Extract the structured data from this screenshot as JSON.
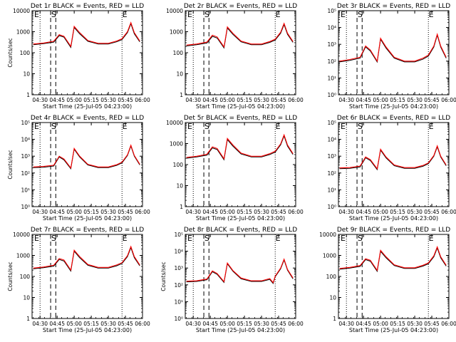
{
  "chart_data": [
    {
      "type": "line",
      "title": "Det 1r BLACK = Events, RED = LLD",
      "xlabel": "",
      "ylabel": "Counts/sec",
      "x_tick_labels": [
        "04:30",
        "04:45",
        "05:00",
        "05:15",
        "05:30",
        "05:45",
        "06:00"
      ],
      "y_tick_labels": [
        "1",
        "10",
        "100",
        "1000",
        "10000"
      ],
      "ylim": [
        1,
        10000
      ],
      "y_scale": "log",
      "markers": [
        "E",
        "S",
        "E"
      ],
      "series": [
        {
          "color": "#000000",
          "x": [
            4.4,
            4.55,
            4.7,
            4.78,
            4.85,
            4.95,
            5.0,
            5.08,
            5.2,
            5.35,
            5.5,
            5.62,
            5.7,
            5.78,
            5.83,
            5.88,
            5.96
          ],
          "y": [
            240,
            270,
            320,
            650,
            550,
            180,
            1600,
            800,
            350,
            260,
            260,
            330,
            420,
            900,
            2400,
            800,
            330
          ]
        },
        {
          "color": "#ff0000",
          "x": [
            4.4,
            4.55,
            4.7,
            4.78,
            4.85,
            4.95,
            5.0,
            5.08,
            5.2,
            5.35,
            5.5,
            5.62,
            5.7,
            5.78,
            5.83,
            5.88,
            5.96
          ],
          "y": [
            260,
            290,
            350,
            720,
            600,
            200,
            1800,
            900,
            380,
            280,
            280,
            360,
            460,
            1000,
            2700,
            900,
            360
          ]
        }
      ]
    },
    {
      "type": "line",
      "title": "Det 2r BLACK = Events, RED = LLD",
      "xlabel": "",
      "ylabel": "",
      "x_tick_labels": [
        "04:30",
        "04:45",
        "05:00",
        "05:15",
        "05:30",
        "05:45",
        "06:00"
      ],
      "y_tick_labels": [
        "1",
        "10",
        "100",
        "1000",
        "10000"
      ],
      "ylim": [
        1,
        10000
      ],
      "y_scale": "log",
      "markers": [
        "E",
        "S",
        "E"
      ],
      "series": [
        {
          "color": "#000000",
          "x": [
            4.4,
            4.55,
            4.7,
            4.78,
            4.85,
            4.95,
            5.0,
            5.08,
            5.2,
            5.35,
            5.5,
            5.62,
            5.7,
            5.78,
            5.83,
            5.88,
            5.96
          ],
          "y": [
            210,
            240,
            290,
            600,
            500,
            170,
            1500,
            750,
            330,
            240,
            240,
            310,
            400,
            850,
            2200,
            750,
            310
          ]
        },
        {
          "color": "#ff0000",
          "x": [
            4.4,
            4.55,
            4.7,
            4.78,
            4.85,
            4.95,
            5.0,
            5.08,
            5.2,
            5.35,
            5.5,
            5.62,
            5.7,
            5.78,
            5.83,
            5.88,
            5.96
          ],
          "y": [
            230,
            260,
            320,
            680,
            560,
            190,
            1700,
            850,
            360,
            260,
            260,
            340,
            440,
            950,
            2500,
            850,
            340
          ]
        }
      ]
    },
    {
      "type": "line",
      "title": "Det 3r BLACK = Events, RED = LLD",
      "xlabel": "",
      "ylabel": "",
      "x_tick_labels": [
        "04:30",
        "04:45",
        "05:00",
        "05:15",
        "05:30",
        "05:45",
        "06:00"
      ],
      "y_tick_labels": [
        "10⁰",
        "10¹",
        "10²",
        "10³",
        "10⁴",
        "10⁵"
      ],
      "ylim": [
        1,
        100000
      ],
      "y_scale": "log",
      "markers": [
        "E",
        "S",
        "E"
      ],
      "series": [
        {
          "color": "#000000",
          "x": [
            4.4,
            4.55,
            4.7,
            4.78,
            4.85,
            4.95,
            5.0,
            5.08,
            5.2,
            5.35,
            5.5,
            5.62,
            5.7,
            5.78,
            5.83,
            5.88,
            5.96
          ],
          "y": [
            90,
            110,
            150,
            700,
            400,
            90,
            2000,
            600,
            150,
            90,
            90,
            130,
            200,
            700,
            3500,
            700,
            150
          ]
        },
        {
          "color": "#ff0000",
          "x": [
            4.4,
            4.55,
            4.7,
            4.78,
            4.85,
            4.95,
            5.0,
            5.08,
            5.2,
            5.35,
            5.5,
            5.62,
            5.7,
            5.78,
            5.83,
            5.88,
            5.96
          ],
          "y": [
            100,
            125,
            170,
            800,
            460,
            100,
            2300,
            700,
            170,
            100,
            100,
            150,
            230,
            800,
            4000,
            800,
            170
          ]
        }
      ]
    },
    {
      "type": "line",
      "title": "Det 4r BLACK = Events, RED = LLD",
      "xlabel": "",
      "ylabel": "Counts/sec",
      "x_tick_labels": [
        "04:30",
        "04:45",
        "05:00",
        "05:15",
        "05:30",
        "05:45",
        "06:00"
      ],
      "y_tick_labels": [
        "10⁰",
        "10¹",
        "10²",
        "10³",
        "10⁴",
        "10⁵"
      ],
      "ylim": [
        1,
        100000
      ],
      "y_scale": "log",
      "markers": [
        "E",
        "S",
        "E"
      ],
      "series": [
        {
          "color": "#000000",
          "x": [
            4.4,
            4.55,
            4.7,
            4.78,
            4.85,
            4.95,
            5.0,
            5.08,
            5.2,
            5.35,
            5.5,
            5.62,
            5.7,
            5.78,
            5.83,
            5.88,
            5.96
          ],
          "y": [
            210,
            220,
            260,
            900,
            600,
            180,
            2600,
            900,
            300,
            210,
            210,
            280,
            400,
            1100,
            4000,
            1000,
            300
          ]
        },
        {
          "color": "#ff0000",
          "x": [
            4.4,
            4.55,
            4.7,
            4.78,
            4.85,
            4.95,
            5.0,
            5.08,
            5.2,
            5.35,
            5.5,
            5.62,
            5.7,
            5.78,
            5.83,
            5.88,
            5.96
          ],
          "y": [
            230,
            245,
            290,
            1000,
            680,
            200,
            2900,
            1000,
            330,
            230,
            230,
            310,
            440,
            1200,
            4500,
            1100,
            330
          ]
        }
      ]
    },
    {
      "type": "line",
      "title": "Det 5r BLACK = Events, RED = LLD",
      "xlabel": "",
      "ylabel": "",
      "x_tick_labels": [
        "04:30",
        "04:45",
        "05:00",
        "05:15",
        "05:30",
        "05:45",
        "06:00"
      ],
      "y_tick_labels": [
        "1",
        "10",
        "100",
        "1000",
        "10000"
      ],
      "ylim": [
        1,
        10000
      ],
      "y_scale": "log",
      "markers": [
        "E",
        "S",
        "E"
      ],
      "series": [
        {
          "color": "#000000",
          "x": [
            4.4,
            4.55,
            4.7,
            4.78,
            4.85,
            4.95,
            5.0,
            5.08,
            5.2,
            5.35,
            5.5,
            5.62,
            5.7,
            5.78,
            5.83,
            5.88,
            5.96
          ],
          "y": [
            200,
            230,
            280,
            620,
            520,
            170,
            1550,
            760,
            320,
            230,
            230,
            300,
            390,
            870,
            2300,
            760,
            300
          ]
        },
        {
          "color": "#ff0000",
          "x": [
            4.4,
            4.55,
            4.7,
            4.78,
            4.85,
            4.95,
            5.0,
            5.08,
            5.2,
            5.35,
            5.5,
            5.62,
            5.7,
            5.78,
            5.83,
            5.88,
            5.96
          ],
          "y": [
            220,
            250,
            310,
            700,
            580,
            190,
            1750,
            860,
            350,
            250,
            250,
            330,
            430,
            970,
            2600,
            860,
            330
          ]
        }
      ]
    },
    {
      "type": "line",
      "title": "Det 6r BLACK = Events, RED = LLD",
      "xlabel": "",
      "ylabel": "",
      "x_tick_labels": [
        "04:30",
        "04:45",
        "05:00",
        "05:15",
        "05:30",
        "05:45",
        "06:00"
      ],
      "y_tick_labels": [
        "10⁰",
        "10¹",
        "10²",
        "10³",
        "10⁴",
        "10⁵"
      ],
      "ylim": [
        1,
        100000
      ],
      "y_scale": "log",
      "markers": [
        "E",
        "S",
        "E"
      ],
      "series": [
        {
          "color": "#000000",
          "x": [
            4.4,
            4.55,
            4.7,
            4.78,
            4.85,
            4.95,
            5.0,
            5.08,
            5.2,
            5.35,
            5.5,
            5.62,
            5.7,
            5.78,
            5.83,
            5.88,
            5.96
          ],
          "y": [
            180,
            190,
            230,
            800,
            550,
            160,
            2300,
            800,
            270,
            190,
            190,
            250,
            360,
            1000,
            3600,
            900,
            270
          ]
        },
        {
          "color": "#ff0000",
          "x": [
            4.4,
            4.55,
            4.7,
            4.78,
            4.85,
            4.95,
            5.0,
            5.08,
            5.2,
            5.35,
            5.5,
            5.62,
            5.7,
            5.78,
            5.83,
            5.88,
            5.96
          ],
          "y": [
            200,
            210,
            260,
            900,
            620,
            180,
            2600,
            900,
            300,
            210,
            210,
            280,
            400,
            1100,
            4100,
            1000,
            300
          ]
        }
      ]
    },
    {
      "type": "line",
      "title": "Det 7r BLACK = Events, RED = LLD",
      "xlabel": "",
      "ylabel": "Counts/sec",
      "x_tick_labels": [
        "04:30",
        "04:45",
        "05:00",
        "05:15",
        "05:30",
        "05:45",
        "06:00"
      ],
      "y_tick_labels": [
        "1",
        "10",
        "100",
        "1000",
        "10000"
      ],
      "ylim": [
        1,
        10000
      ],
      "y_scale": "log",
      "markers": [
        "E",
        "S",
        "E"
      ],
      "series": [
        {
          "color": "#000000",
          "x": [
            4.4,
            4.55,
            4.7,
            4.78,
            4.85,
            4.95,
            5.0,
            5.08,
            5.2,
            5.35,
            5.5,
            5.62,
            5.7,
            5.78,
            5.83,
            5.88,
            5.96
          ],
          "y": [
            230,
            260,
            310,
            640,
            540,
            180,
            1580,
            780,
            340,
            250,
            250,
            320,
            410,
            880,
            2350,
            780,
            320
          ]
        },
        {
          "color": "#ff0000",
          "x": [
            4.4,
            4.55,
            4.7,
            4.78,
            4.85,
            4.95,
            5.0,
            5.08,
            5.2,
            5.35,
            5.5,
            5.62,
            5.7,
            5.78,
            5.83,
            5.88,
            5.96
          ],
          "y": [
            250,
            280,
            340,
            710,
            600,
            200,
            1780,
            880,
            370,
            270,
            270,
            350,
            450,
            980,
            2650,
            880,
            350
          ]
        }
      ]
    },
    {
      "type": "line",
      "title": "Det 8r BLACK = Events, RED = LLD",
      "xlabel": "",
      "ylabel": "Counts/sec",
      "x_tick_labels": [
        "04:30",
        "04:45",
        "05:00",
        "05:15",
        "05:30",
        "05:45",
        "06:00"
      ],
      "y_tick_labels": [
        "10⁰",
        "10¹",
        "10²",
        "10³",
        "10⁴",
        "10⁵"
      ],
      "ylim": [
        1,
        100000
      ],
      "y_scale": "log",
      "markers": [
        "E",
        "S",
        "E"
      ],
      "series": [
        {
          "color": "#000000",
          "x": [
            4.4,
            4.55,
            4.7,
            4.78,
            4.85,
            4.95,
            5.0,
            5.08,
            5.2,
            5.35,
            5.5,
            5.62,
            5.67,
            5.7,
            5.78,
            5.83,
            5.88,
            5.96
          ],
          "y": [
            150,
            160,
            200,
            600,
            420,
            140,
            1800,
            650,
            230,
            160,
            160,
            210,
            120,
            300,
            900,
            3000,
            750,
            230
          ]
        },
        {
          "color": "#ff0000",
          "x": [
            4.4,
            4.55,
            4.7,
            4.78,
            4.85,
            4.95,
            5.0,
            5.08,
            5.2,
            5.35,
            5.5,
            5.62,
            5.67,
            5.7,
            5.78,
            5.83,
            5.88,
            5.96
          ],
          "y": [
            165,
            175,
            220,
            680,
            470,
            155,
            2000,
            720,
            255,
            175,
            175,
            235,
            135,
            330,
            1000,
            3400,
            830,
            255
          ]
        }
      ]
    },
    {
      "type": "line",
      "title": "Det 9r BLACK = Events, RED = LLD",
      "xlabel": "",
      "ylabel": "",
      "x_tick_labels": [
        "04:30",
        "04:45",
        "05:00",
        "05:15",
        "05:30",
        "05:45",
        "06:00"
      ],
      "y_tick_labels": [
        "1",
        "10",
        "100",
        "1000",
        "10000"
      ],
      "ylim": [
        1,
        10000
      ],
      "y_scale": "log",
      "markers": [
        "E",
        "S",
        "E"
      ],
      "series": [
        {
          "color": "#000000",
          "x": [
            4.4,
            4.55,
            4.7,
            4.78,
            4.85,
            4.95,
            5.0,
            5.08,
            5.2,
            5.35,
            5.5,
            5.62,
            5.7,
            5.78,
            5.83,
            5.88,
            5.96
          ],
          "y": [
            220,
            250,
            300,
            630,
            530,
            175,
            1560,
            770,
            330,
            240,
            240,
            310,
            400,
            860,
            2250,
            770,
            310
          ]
        },
        {
          "color": "#ff0000",
          "x": [
            4.4,
            4.55,
            4.7,
            4.78,
            4.85,
            4.95,
            5.0,
            5.08,
            5.2,
            5.35,
            5.5,
            5.62,
            5.7,
            5.78,
            5.83,
            5.88,
            5.96
          ],
          "y": [
            240,
            270,
            330,
            700,
            590,
            195,
            1760,
            870,
            360,
            260,
            260,
            340,
            440,
            960,
            2550,
            870,
            340
          ]
        }
      ]
    }
  ],
  "shared_xlabel": "Start Time (25-Jul-05 04:23:00)",
  "x_range_hours": [
    4.383,
    6.0
  ],
  "x_tick_hours": [
    4.5,
    4.75,
    5.0,
    5.25,
    5.5,
    5.75,
    6.0
  ],
  "dotted_lines_hours": [
    4.5,
    5.7
  ],
  "dashed_lines_hours": [
    4.655,
    4.73
  ]
}
